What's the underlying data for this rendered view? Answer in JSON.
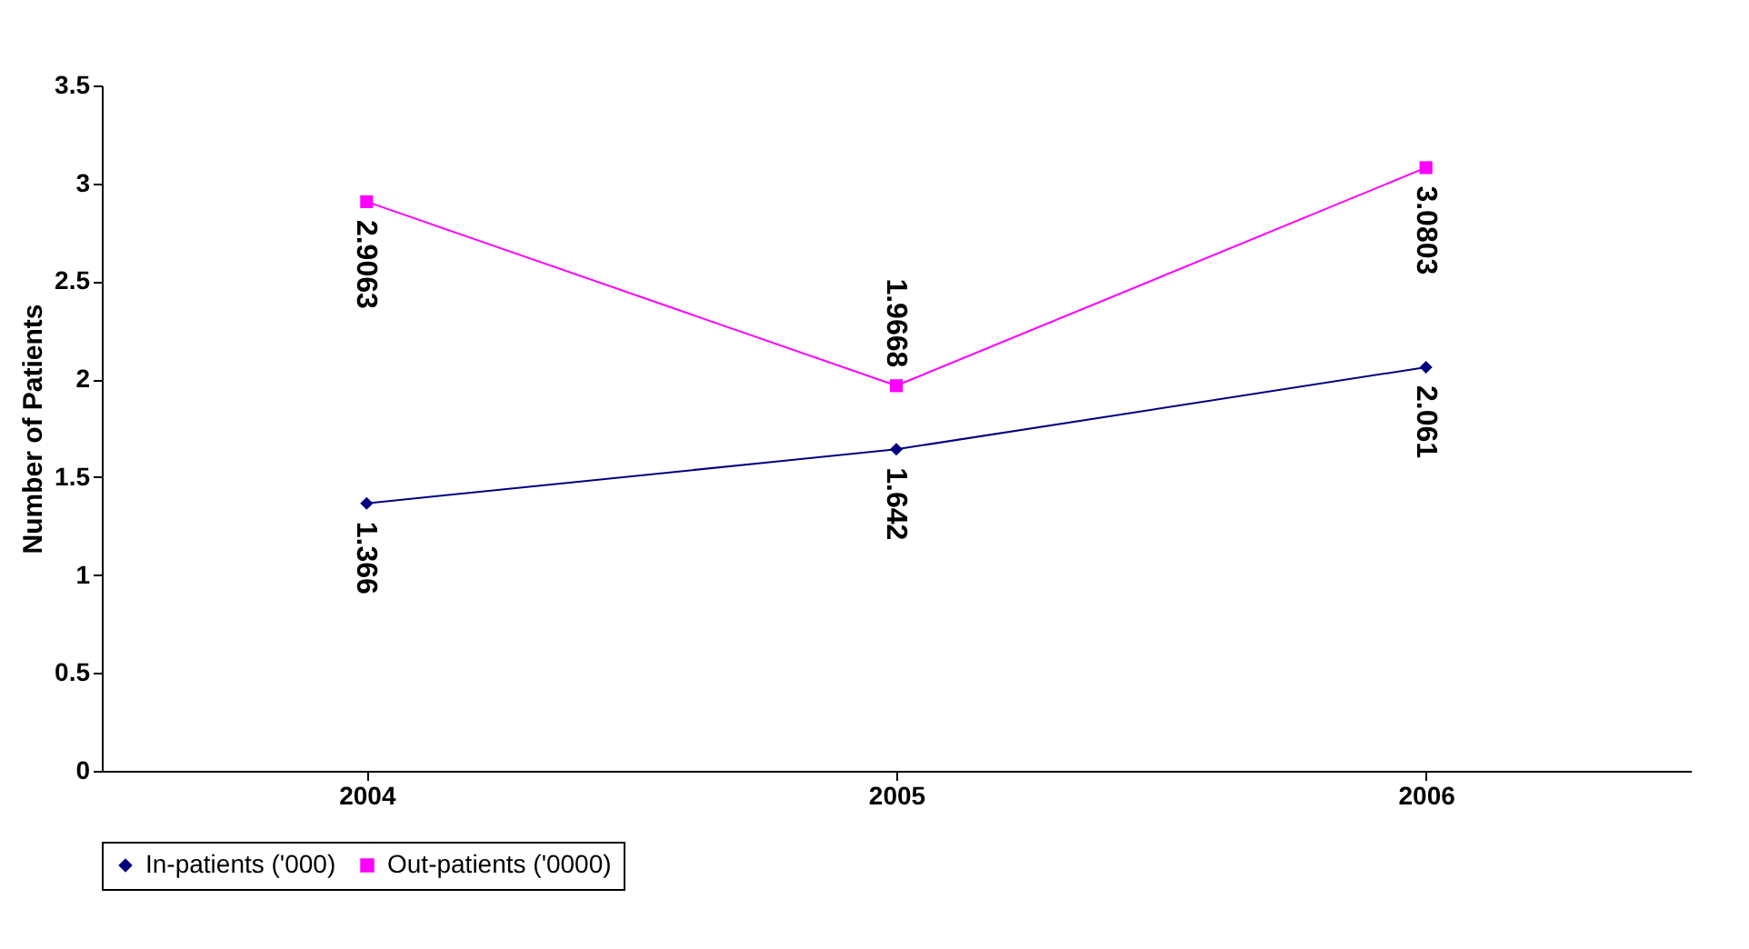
{
  "chart_data": {
    "type": "line",
    "ylabel": "Number of Patients",
    "categories": [
      "2004",
      "2005",
      "2006"
    ],
    "series": [
      {
        "name": "In-patients ('000)",
        "color": "#000080",
        "marker": "diamond",
        "values": [
          1.366,
          1.642,
          2.061
        ]
      },
      {
        "name": "Out-patients ('0000)",
        "color": "#ff00ff",
        "marker": "square",
        "values": [
          2.9063,
          1.9668,
          3.0803
        ]
      }
    ],
    "ylim": [
      0,
      3.5
    ],
    "yticks": [
      0,
      0.5,
      1,
      1.5,
      2,
      2.5,
      3,
      3.5
    ],
    "grid": false,
    "legend": "bottom",
    "data_labels": true
  }
}
